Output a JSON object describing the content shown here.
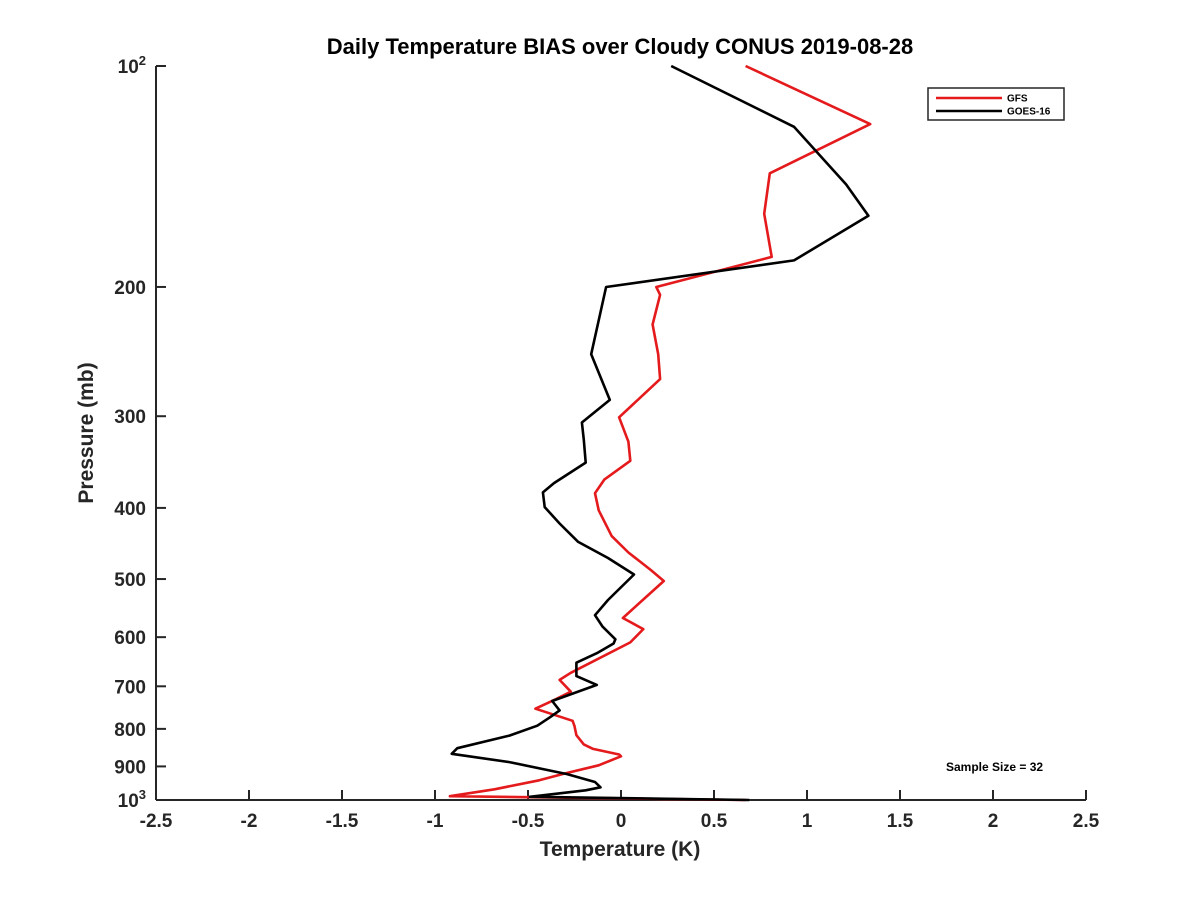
{
  "chart_data": {
    "type": "line",
    "title": "Daily Temperature BIAS over Cloudy CONUS 2019-08-28",
    "xlabel": "Temperature (K)",
    "ylabel": "Pressure (mb)",
    "xlim": [
      -2.5,
      2.5
    ],
    "ylim": [
      100,
      1000
    ],
    "y_scale": "log",
    "y_reversed": true,
    "grid": false,
    "legend_position": "top-right",
    "x_ticks": [
      {
        "value": -2.5,
        "label": "-2.5"
      },
      {
        "value": -2,
        "label": "-2"
      },
      {
        "value": -1.5,
        "label": "-1.5"
      },
      {
        "value": -1,
        "label": "-1"
      },
      {
        "value": -0.5,
        "label": "-0.5"
      },
      {
        "value": 0,
        "label": "0"
      },
      {
        "value": 0.5,
        "label": "0.5"
      },
      {
        "value": 1,
        "label": "1"
      },
      {
        "value": 1.5,
        "label": "1.5"
      },
      {
        "value": 2,
        "label": "2"
      },
      {
        "value": 2.5,
        "label": "2.5"
      }
    ],
    "y_ticks": [
      {
        "value": 100,
        "label": "10",
        "sup": "2"
      },
      {
        "value": 200,
        "label": "200",
        "sup": ""
      },
      {
        "value": 300,
        "label": "300",
        "sup": ""
      },
      {
        "value": 400,
        "label": "400",
        "sup": ""
      },
      {
        "value": 500,
        "label": "500",
        "sup": ""
      },
      {
        "value": 600,
        "label": "600",
        "sup": ""
      },
      {
        "value": 700,
        "label": "700",
        "sup": ""
      },
      {
        "value": 800,
        "label": "800",
        "sup": ""
      },
      {
        "value": 900,
        "label": "900",
        "sup": ""
      },
      {
        "value": 1000,
        "label": "10",
        "sup": "3"
      }
    ],
    "annotation": "Sample Size = 32",
    "series": [
      {
        "name": "GFS",
        "color": "#e41a1c",
        "points": [
          [
            0.67,
            1000
          ],
          [
            -0.92,
            988
          ],
          [
            -0.68,
            967
          ],
          [
            -0.44,
            940
          ],
          [
            -0.3,
            920
          ],
          [
            -0.12,
            897
          ],
          [
            0.0,
            872
          ],
          [
            -0.01,
            867
          ],
          [
            -0.15,
            852
          ],
          [
            -0.2,
            840
          ],
          [
            -0.24,
            816
          ],
          [
            -0.25,
            793
          ],
          [
            -0.26,
            780
          ],
          [
            -0.46,
            751
          ],
          [
            -0.35,
            729
          ],
          [
            -0.27,
            712
          ],
          [
            -0.33,
            686
          ],
          [
            -0.27,
            671
          ],
          [
            0.05,
            610
          ],
          [
            0.12,
            585
          ],
          [
            0.01,
            565
          ],
          [
            0.23,
            503
          ],
          [
            0.16,
            486
          ],
          [
            0.04,
            460
          ],
          [
            -0.05,
            437
          ],
          [
            -0.12,
            403
          ],
          [
            -0.14,
            382
          ],
          [
            -0.09,
            366
          ],
          [
            0.05,
            345
          ],
          [
            0.04,
            325
          ],
          [
            -0.01,
            301
          ],
          [
            0.21,
            267
          ],
          [
            0.2,
            247
          ],
          [
            0.17,
            225
          ],
          [
            0.21,
            205
          ],
          [
            0.19,
            200
          ],
          [
            0.81,
            182
          ],
          [
            0.77,
            159
          ],
          [
            0.8,
            140
          ],
          [
            1.34,
            120
          ],
          [
            0.67,
            100
          ]
        ]
      },
      {
        "name": "GOES-16",
        "color": "#000000",
        "points": [
          [
            0.69,
            1000
          ],
          [
            -0.49,
            990
          ],
          [
            -0.19,
            970
          ],
          [
            -0.11,
            961
          ],
          [
            -0.14,
            945
          ],
          [
            -0.29,
            922
          ],
          [
            -0.6,
            888
          ],
          [
            -0.91,
            865
          ],
          [
            -0.88,
            850
          ],
          [
            -0.6,
            817
          ],
          [
            -0.45,
            792
          ],
          [
            -0.38,
            771
          ],
          [
            -0.33,
            755
          ],
          [
            -0.37,
            733
          ],
          [
            -0.13,
            697
          ],
          [
            -0.24,
            678
          ],
          [
            -0.24,
            650
          ],
          [
            -0.13,
            631
          ],
          [
            -0.04,
            612
          ],
          [
            -0.03,
            604
          ],
          [
            -0.1,
            580
          ],
          [
            -0.14,
            560
          ],
          [
            -0.07,
            534
          ],
          [
            0.07,
            493
          ],
          [
            -0.07,
            468
          ],
          [
            -0.23,
            445
          ],
          [
            -0.33,
            420
          ],
          [
            -0.41,
            399
          ],
          [
            -0.42,
            381
          ],
          [
            -0.36,
            370
          ],
          [
            -0.19,
            347
          ],
          [
            -0.2,
            323
          ],
          [
            -0.21,
            306
          ],
          [
            -0.06,
            285
          ],
          [
            -0.16,
            247
          ],
          [
            -0.08,
            200
          ],
          [
            0.93,
            184
          ],
          [
            1.33,
            160
          ],
          [
            1.21,
            145
          ],
          [
            0.93,
            121
          ],
          [
            0.27,
            100
          ]
        ]
      }
    ]
  }
}
